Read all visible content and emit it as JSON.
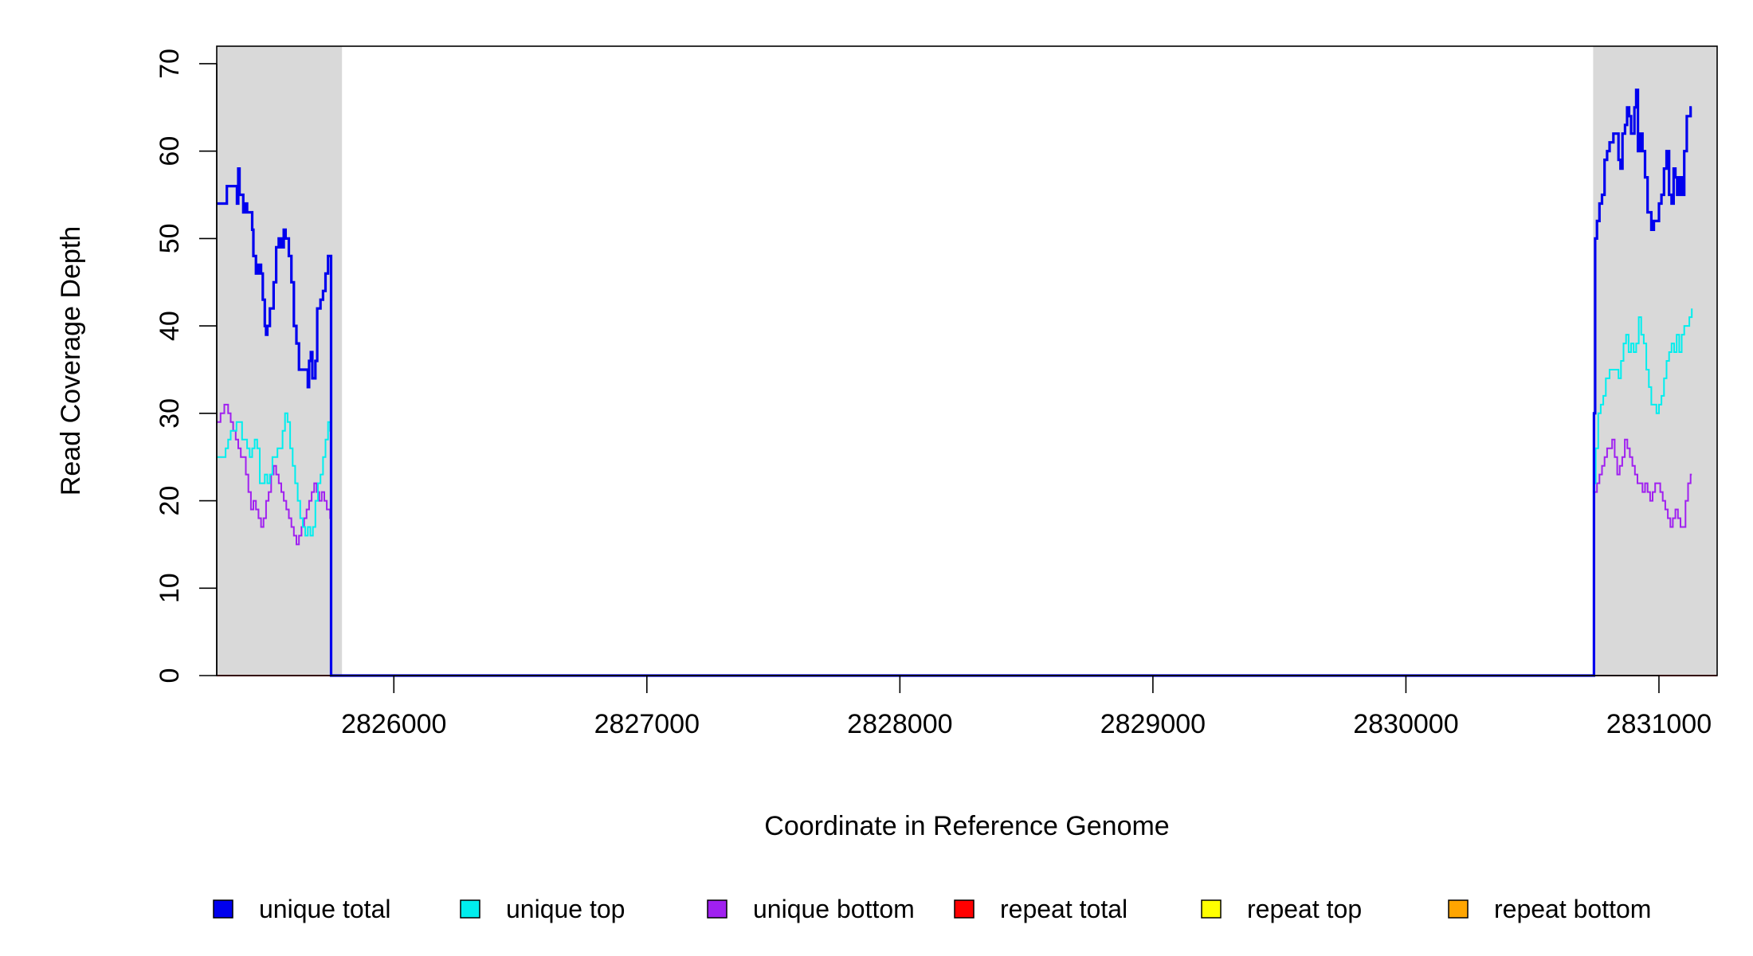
{
  "chart_data": {
    "type": "line",
    "title": "",
    "xlabel": "Coordinate in Reference Genome",
    "ylabel": "Read Coverage Depth",
    "xlim": [
      2825300,
      2831230
    ],
    "ylim": [
      0,
      72
    ],
    "x_ticks": [
      2826000,
      2827000,
      2828000,
      2829000,
      2830000,
      2831000
    ],
    "y_ticks": [
      0,
      10,
      20,
      30,
      40,
      50,
      60,
      70
    ],
    "grid": false,
    "legend_position": "bottom",
    "shaded_regions": [
      [
        2825300,
        2825795
      ],
      [
        2830740,
        2831230
      ]
    ],
    "series": [
      {
        "name": "unique total",
        "color": "#0000ee",
        "points": [
          [
            2825300,
            54
          ],
          [
            2825330,
            54
          ],
          [
            2825340,
            56
          ],
          [
            2825370,
            56
          ],
          [
            2825380,
            54
          ],
          [
            2825385,
            58
          ],
          [
            2825390,
            55
          ],
          [
            2825400,
            55
          ],
          [
            2825405,
            53
          ],
          [
            2825410,
            54
          ],
          [
            2825420,
            53
          ],
          [
            2825430,
            53
          ],
          [
            2825440,
            51
          ],
          [
            2825445,
            48
          ],
          [
            2825455,
            46
          ],
          [
            2825465,
            47
          ],
          [
            2825475,
            46
          ],
          [
            2825482,
            43
          ],
          [
            2825490,
            40
          ],
          [
            2825495,
            39
          ],
          [
            2825500,
            40
          ],
          [
            2825510,
            42
          ],
          [
            2825520,
            42
          ],
          [
            2825525,
            45
          ],
          [
            2825535,
            49
          ],
          [
            2825545,
            50
          ],
          [
            2825555,
            49
          ],
          [
            2825565,
            51
          ],
          [
            2825572,
            50
          ],
          [
            2825585,
            48
          ],
          [
            2825595,
            45
          ],
          [
            2825605,
            40
          ],
          [
            2825615,
            38
          ],
          [
            2825625,
            35
          ],
          [
            2825650,
            35
          ],
          [
            2825660,
            33
          ],
          [
            2825665,
            36
          ],
          [
            2825672,
            37
          ],
          [
            2825678,
            34
          ],
          [
            2825690,
            36
          ],
          [
            2825697,
            42
          ],
          [
            2825710,
            43
          ],
          [
            2825720,
            44
          ],
          [
            2825730,
            46
          ],
          [
            2825740,
            48
          ],
          [
            2825748,
            48
          ],
          [
            2825752,
            0
          ],
          [
            2830740,
            0
          ],
          [
            2830743,
            30
          ],
          [
            2830748,
            50
          ],
          [
            2830755,
            52
          ],
          [
            2830765,
            54
          ],
          [
            2830775,
            55
          ],
          [
            2830785,
            59
          ],
          [
            2830795,
            60
          ],
          [
            2830805,
            61
          ],
          [
            2830820,
            62
          ],
          [
            2830840,
            59
          ],
          [
            2830848,
            58
          ],
          [
            2830856,
            62
          ],
          [
            2830866,
            63
          ],
          [
            2830874,
            65
          ],
          [
            2830882,
            64
          ],
          [
            2830890,
            62
          ],
          [
            2830903,
            65
          ],
          [
            2830910,
            67
          ],
          [
            2830917,
            60
          ],
          [
            2830925,
            62
          ],
          [
            2830935,
            60
          ],
          [
            2830945,
            57
          ],
          [
            2830955,
            53
          ],
          [
            2830970,
            51
          ],
          [
            2830980,
            52
          ],
          [
            2830990,
            52
          ],
          [
            2831000,
            54
          ],
          [
            2831010,
            55
          ],
          [
            2831020,
            58
          ],
          [
            2831030,
            60
          ],
          [
            2831040,
            55
          ],
          [
            2831050,
            54
          ],
          [
            2831058,
            58
          ],
          [
            2831065,
            57
          ],
          [
            2831072,
            55
          ],
          [
            2831080,
            57
          ],
          [
            2831090,
            55
          ],
          [
            2831100,
            60
          ],
          [
            2831110,
            64
          ],
          [
            2831120,
            64
          ],
          [
            2831125,
            65
          ],
          [
            2831130,
            65
          ]
        ]
      },
      {
        "name": "unique top",
        "color": "#00eeee",
        "points": [
          [
            2825300,
            25
          ],
          [
            2825325,
            25
          ],
          [
            2825335,
            26
          ],
          [
            2825345,
            27
          ],
          [
            2825355,
            28
          ],
          [
            2825365,
            28
          ],
          [
            2825378,
            29
          ],
          [
            2825390,
            29
          ],
          [
            2825400,
            27
          ],
          [
            2825410,
            27
          ],
          [
            2825420,
            26
          ],
          [
            2825430,
            25
          ],
          [
            2825440,
            26
          ],
          [
            2825450,
            27
          ],
          [
            2825460,
            26
          ],
          [
            2825470,
            22
          ],
          [
            2825480,
            22
          ],
          [
            2825490,
            23
          ],
          [
            2825500,
            22
          ],
          [
            2825510,
            23
          ],
          [
            2825520,
            25
          ],
          [
            2825530,
            25
          ],
          [
            2825540,
            26
          ],
          [
            2825550,
            26
          ],
          [
            2825560,
            28
          ],
          [
            2825570,
            30
          ],
          [
            2825580,
            29
          ],
          [
            2825590,
            26
          ],
          [
            2825600,
            24
          ],
          [
            2825610,
            22
          ],
          [
            2825620,
            20
          ],
          [
            2825630,
            18
          ],
          [
            2825640,
            17
          ],
          [
            2825650,
            16
          ],
          [
            2825660,
            17
          ],
          [
            2825670,
            16
          ],
          [
            2825680,
            17
          ],
          [
            2825690,
            20
          ],
          [
            2825700,
            22
          ],
          [
            2825710,
            23
          ],
          [
            2825720,
            25
          ],
          [
            2825730,
            27
          ],
          [
            2825740,
            29
          ],
          [
            2825748,
            28
          ],
          [
            2825752,
            0
          ],
          [
            2830740,
            0
          ],
          [
            2830743,
            22
          ],
          [
            2830750,
            26
          ],
          [
            2830760,
            30
          ],
          [
            2830770,
            31
          ],
          [
            2830780,
            32
          ],
          [
            2830790,
            34
          ],
          [
            2830805,
            35
          ],
          [
            2830825,
            35
          ],
          [
            2830840,
            34
          ],
          [
            2830850,
            36
          ],
          [
            2830860,
            38
          ],
          [
            2830870,
            39
          ],
          [
            2830880,
            37
          ],
          [
            2830890,
            38
          ],
          [
            2830900,
            37
          ],
          [
            2830910,
            38
          ],
          [
            2830920,
            41
          ],
          [
            2830930,
            39
          ],
          [
            2830940,
            38
          ],
          [
            2830950,
            35
          ],
          [
            2830960,
            33
          ],
          [
            2830970,
            31
          ],
          [
            2830990,
            30
          ],
          [
            2831000,
            31
          ],
          [
            2831010,
            32
          ],
          [
            2831020,
            34
          ],
          [
            2831030,
            36
          ],
          [
            2831040,
            37
          ],
          [
            2831050,
            38
          ],
          [
            2831060,
            37
          ],
          [
            2831070,
            39
          ],
          [
            2831080,
            37
          ],
          [
            2831090,
            39
          ],
          [
            2831100,
            40
          ],
          [
            2831110,
            40
          ],
          [
            2831120,
            41
          ],
          [
            2831130,
            42
          ]
        ]
      },
      {
        "name": "unique bottom",
        "color": "#a020f0",
        "points": [
          [
            2825300,
            29
          ],
          [
            2825315,
            30
          ],
          [
            2825330,
            31
          ],
          [
            2825345,
            30
          ],
          [
            2825355,
            29
          ],
          [
            2825365,
            28
          ],
          [
            2825375,
            27
          ],
          [
            2825385,
            26
          ],
          [
            2825395,
            25
          ],
          [
            2825405,
            25
          ],
          [
            2825415,
            23
          ],
          [
            2825425,
            21
          ],
          [
            2825435,
            19
          ],
          [
            2825445,
            20
          ],
          [
            2825455,
            19
          ],
          [
            2825465,
            18
          ],
          [
            2825475,
            17
          ],
          [
            2825485,
            18
          ],
          [
            2825495,
            20
          ],
          [
            2825505,
            21
          ],
          [
            2825515,
            23
          ],
          [
            2825525,
            24
          ],
          [
            2825535,
            23
          ],
          [
            2825545,
            22
          ],
          [
            2825555,
            21
          ],
          [
            2825565,
            20
          ],
          [
            2825575,
            19
          ],
          [
            2825585,
            18
          ],
          [
            2825595,
            17
          ],
          [
            2825605,
            16
          ],
          [
            2825615,
            15
          ],
          [
            2825625,
            16
          ],
          [
            2825635,
            17
          ],
          [
            2825645,
            18
          ],
          [
            2825655,
            19
          ],
          [
            2825665,
            20
          ],
          [
            2825675,
            21
          ],
          [
            2825685,
            22
          ],
          [
            2825695,
            21
          ],
          [
            2825705,
            20
          ],
          [
            2825715,
            21
          ],
          [
            2825725,
            20
          ],
          [
            2825735,
            19
          ],
          [
            2825748,
            18
          ],
          [
            2825752,
            0
          ],
          [
            2830740,
            0
          ],
          [
            2830743,
            21
          ],
          [
            2830755,
            22
          ],
          [
            2830765,
            23
          ],
          [
            2830775,
            24
          ],
          [
            2830785,
            25
          ],
          [
            2830795,
            26
          ],
          [
            2830805,
            26
          ],
          [
            2830815,
            27
          ],
          [
            2830825,
            25
          ],
          [
            2830835,
            23
          ],
          [
            2830845,
            24
          ],
          [
            2830855,
            25
          ],
          [
            2830865,
            27
          ],
          [
            2830875,
            26
          ],
          [
            2830885,
            25
          ],
          [
            2830895,
            24
          ],
          [
            2830905,
            23
          ],
          [
            2830915,
            22
          ],
          [
            2830925,
            22
          ],
          [
            2830935,
            21
          ],
          [
            2830945,
            22
          ],
          [
            2830955,
            21
          ],
          [
            2830965,
            20
          ],
          [
            2830975,
            21
          ],
          [
            2830985,
            22
          ],
          [
            2830995,
            22
          ],
          [
            2831005,
            21
          ],
          [
            2831015,
            20
          ],
          [
            2831025,
            19
          ],
          [
            2831035,
            18
          ],
          [
            2831045,
            17
          ],
          [
            2831055,
            18
          ],
          [
            2831065,
            19
          ],
          [
            2831075,
            18
          ],
          [
            2831085,
            17
          ],
          [
            2831095,
            17
          ],
          [
            2831105,
            20
          ],
          [
            2831115,
            22
          ],
          [
            2831125,
            23
          ],
          [
            2831130,
            23
          ]
        ]
      },
      {
        "name": "repeat total",
        "color": "#ff0000",
        "points": [
          [
            2825300,
            0
          ],
          [
            2831230,
            0
          ]
        ]
      },
      {
        "name": "repeat top",
        "color": "#ffff00",
        "points": [
          [
            2825300,
            0
          ],
          [
            2831230,
            0
          ]
        ]
      },
      {
        "name": "repeat bottom",
        "color": "#ffa500",
        "points": [
          [
            2825300,
            0
          ],
          [
            2831230,
            0
          ]
        ]
      }
    ]
  }
}
